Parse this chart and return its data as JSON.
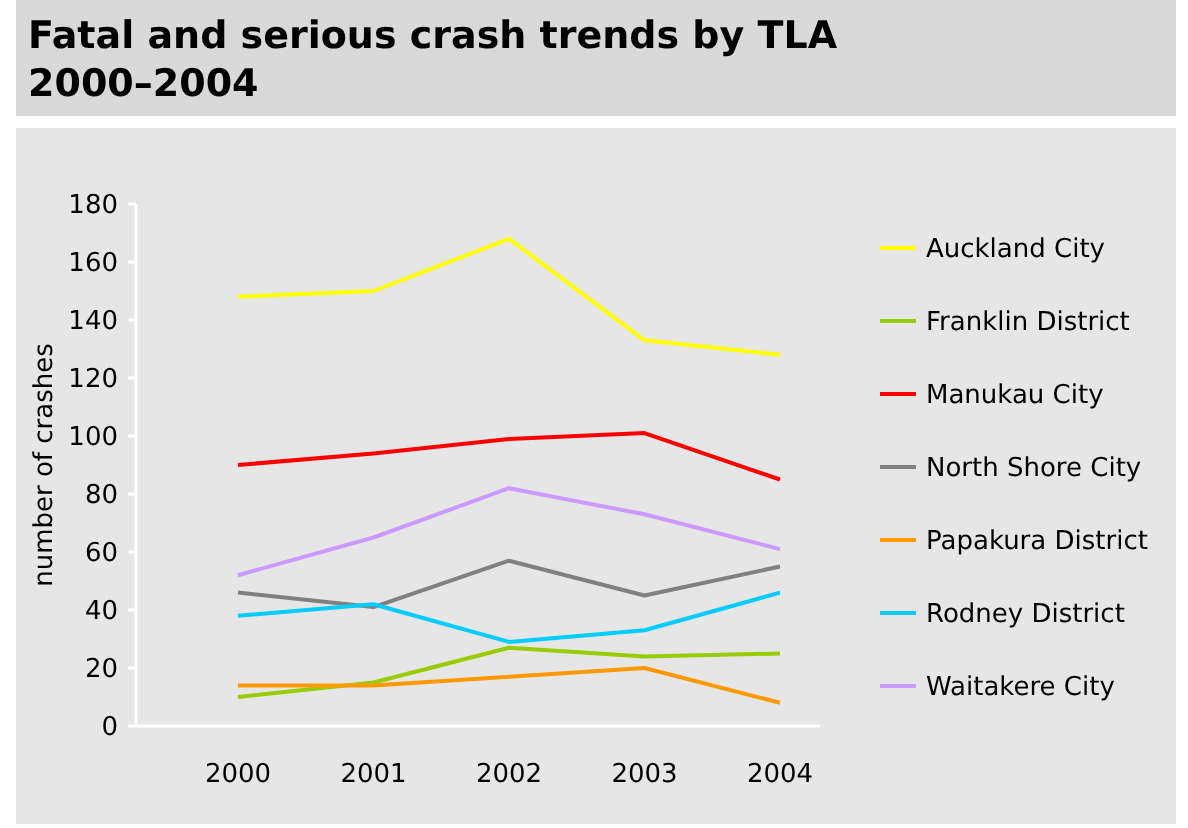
{
  "chart_data": {
    "type": "line",
    "title": "Fatal and serious crash trends by TLA\n2000–2004",
    "ylabel": "number of crashes",
    "categories": [
      "2000",
      "2001",
      "2002",
      "2003",
      "2004"
    ],
    "ylim": [
      0,
      180
    ],
    "yticks": [
      0,
      20,
      40,
      60,
      80,
      100,
      120,
      140,
      160,
      180
    ],
    "grid": false,
    "legend": "right",
    "marker": "none",
    "line_style": "solid",
    "series": [
      {
        "name": "Auckland City",
        "color": "#ffff00",
        "values": [
          148,
          150,
          168,
          133,
          128
        ]
      },
      {
        "name": "Franklin District",
        "color": "#99cc00",
        "values": [
          10,
          15,
          27,
          24,
          25
        ]
      },
      {
        "name": "Manukau City",
        "color": "#ff0000",
        "values": [
          90,
          94,
          99,
          101,
          85
        ]
      },
      {
        "name": "North Shore City",
        "color": "#808080",
        "values": [
          46,
          41,
          57,
          45,
          55
        ]
      },
      {
        "name": "Papakura District",
        "color": "#ff9900",
        "values": [
          14,
          14,
          17,
          20,
          8
        ]
      },
      {
        "name": "Rodney District",
        "color": "#00ccff",
        "values": [
          38,
          42,
          29,
          33,
          46
        ]
      },
      {
        "name": "Waitakere City",
        "color": "#cc99ff",
        "values": [
          52,
          65,
          82,
          73,
          61
        ]
      }
    ]
  }
}
